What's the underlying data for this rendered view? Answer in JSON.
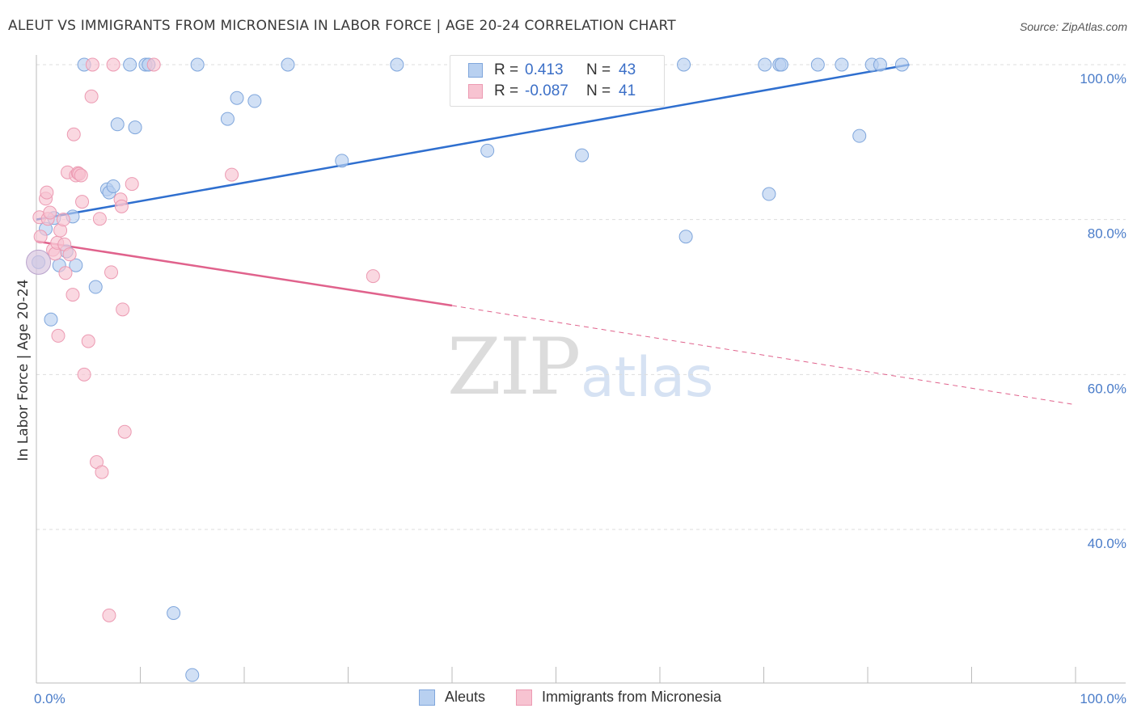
{
  "title": "ALEUT VS IMMIGRANTS FROM MICRONESIA IN LABOR FORCE | AGE 20-24 CORRELATION CHART",
  "source": "Source: ZipAtlas.com",
  "watermark": {
    "zip": "ZIP",
    "atlas": "atlas"
  },
  "colors": {
    "blue_fill": "#b8d0f0",
    "blue_stroke": "#7fa6dc",
    "blue_line": "#2f6fcf",
    "pink_fill": "#f7c3d1",
    "pink_stroke": "#ec9ab2",
    "pink_line": "#e0628c",
    "axis_text": "#4a7cc9",
    "grid": "#dddddd"
  },
  "legend": {
    "rows": [
      {
        "r_label": "R =",
        "r_value": "0.413",
        "n_label": "N =",
        "n_value": "43"
      },
      {
        "r_label": "R =",
        "r_value": "-0.087",
        "n_label": "N =",
        "n_value": "41"
      }
    ]
  },
  "bottom_legend": {
    "aleuts": "Aleuts",
    "micronesia": "Immigrants from Micronesia"
  },
  "chart_data": {
    "type": "scatter",
    "xlabel": "",
    "ylabel": "In Labor Force | Age 20-24",
    "xlim": [
      0,
      100
    ],
    "ylim": [
      20,
      102
    ],
    "x_tick_labels": [
      "0.0%",
      "100.0%"
    ],
    "y_ticks": [
      40,
      60,
      80,
      100
    ],
    "y_tick_labels": [
      "40.0%",
      "60.0%",
      "80.0%",
      "100.0%"
    ],
    "grid": "horizontal dashed",
    "series": [
      {
        "name": "Aleuts",
        "points": [
          [
            0.2,
            74.5
          ],
          [
            0.9,
            78.8
          ],
          [
            1.4,
            67.1
          ],
          [
            1.7,
            80.2
          ],
          [
            2.2,
            74.1
          ],
          [
            2.9,
            75.9
          ],
          [
            3.5,
            80.4
          ],
          [
            3.8,
            74.1
          ],
          [
            4.6,
            100
          ],
          [
            5.7,
            71.3
          ],
          [
            6.8,
            83.9
          ],
          [
            7.0,
            83.5
          ],
          [
            7.4,
            84.3
          ],
          [
            7.8,
            92.3
          ],
          [
            9.0,
            100
          ],
          [
            9.5,
            91.9
          ],
          [
            10.5,
            100
          ],
          [
            10.8,
            100
          ],
          [
            13.2,
            29.2
          ],
          [
            15.0,
            21.2
          ],
          [
            15.5,
            100
          ],
          [
            18.4,
            93.0
          ],
          [
            19.3,
            95.7
          ],
          [
            21.0,
            95.3
          ],
          [
            24.2,
            100
          ],
          [
            29.4,
            87.6
          ],
          [
            34.7,
            100
          ],
          [
            43.4,
            88.9
          ],
          [
            47.0,
            100
          ],
          [
            52.5,
            88.3
          ],
          [
            55.8,
            100
          ],
          [
            62.3,
            100
          ],
          [
            62.5,
            77.8
          ],
          [
            70.1,
            100
          ],
          [
            70.5,
            83.3
          ],
          [
            71.5,
            100
          ],
          [
            71.7,
            100
          ],
          [
            75.2,
            100
          ],
          [
            77.5,
            100
          ],
          [
            79.2,
            90.8
          ],
          [
            80.4,
            100
          ],
          [
            81.2,
            100
          ],
          [
            83.3,
            100
          ]
        ],
        "trend": {
          "x": [
            0,
            84
          ],
          "y": [
            80.0,
            100.0
          ]
        }
      },
      {
        "name": "Immigrants from Micronesia",
        "points": [
          [
            0.3,
            80.3
          ],
          [
            0.4,
            77.8
          ],
          [
            0.9,
            82.7
          ],
          [
            1.0,
            83.5
          ],
          [
            1.1,
            80.1
          ],
          [
            1.3,
            80.9
          ],
          [
            1.6,
            76.1
          ],
          [
            1.8,
            75.6
          ],
          [
            2.0,
            77.0
          ],
          [
            2.1,
            65.0
          ],
          [
            2.3,
            78.6
          ],
          [
            2.6,
            80.0
          ],
          [
            2.7,
            76.8
          ],
          [
            2.8,
            73.1
          ],
          [
            3.0,
            86.1
          ],
          [
            3.2,
            75.5
          ],
          [
            3.5,
            70.3
          ],
          [
            3.6,
            91.0
          ],
          [
            3.8,
            85.7
          ],
          [
            4.0,
            86.0
          ],
          [
            4.1,
            85.9
          ],
          [
            4.3,
            85.7
          ],
          [
            4.4,
            82.3
          ],
          [
            4.6,
            60.0
          ],
          [
            5.0,
            64.3
          ],
          [
            5.3,
            95.9
          ],
          [
            5.4,
            100
          ],
          [
            5.8,
            48.7
          ],
          [
            6.1,
            80.1
          ],
          [
            6.3,
            47.4
          ],
          [
            7.0,
            28.9
          ],
          [
            7.2,
            73.2
          ],
          [
            7.4,
            100
          ],
          [
            8.1,
            82.6
          ],
          [
            8.2,
            81.7
          ],
          [
            8.3,
            68.4
          ],
          [
            8.5,
            52.6
          ],
          [
            9.2,
            84.6
          ],
          [
            11.3,
            100
          ],
          [
            18.8,
            85.8
          ],
          [
            32.4,
            72.7
          ]
        ],
        "trend": {
          "x": [
            0,
            40
          ],
          "y": [
            77.2,
            68.9
          ],
          "dashed_extension": {
            "x": [
              40,
              100
            ],
            "y": [
              68.9,
              56.1
            ]
          }
        }
      }
    ]
  }
}
